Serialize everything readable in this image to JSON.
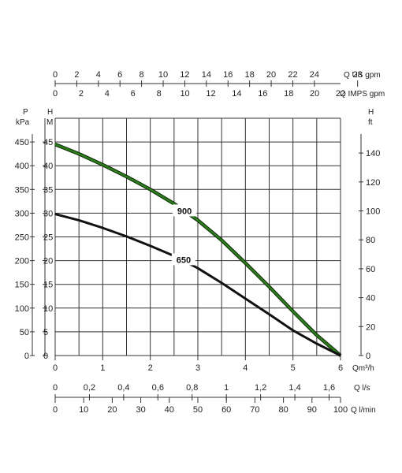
{
  "chart_data": {
    "type": "line",
    "title": "",
    "grid": true,
    "x": [
      0,
      0.5,
      1,
      1.5,
      2,
      2.5,
      3,
      3.5,
      4,
      4.5,
      5,
      5.5,
      6
    ],
    "xlim": [
      0,
      6
    ],
    "ylim": [
      0,
      45
    ],
    "series": [
      {
        "name": "900",
        "color": "#2e7d1e",
        "values": [
          44.5,
          42.5,
          40.2,
          37.7,
          35.0,
          32.0,
          28.5,
          24.3,
          19.5,
          14.5,
          9.3,
          4.3,
          0
        ]
      },
      {
        "name": "650",
        "color": "#111111",
        "values": [
          29.8,
          28.5,
          26.9,
          25.1,
          23.1,
          21.0,
          18.4,
          15.3,
          12.0,
          8.7,
          5.3,
          2.5,
          0
        ]
      }
    ],
    "axes": {
      "bottom_m3h": {
        "unit": "Qm³/h",
        "ticks": [
          "0",
          "1",
          "2",
          "3",
          "4",
          "5",
          "6"
        ]
      },
      "bottom_ls": {
        "unit": "Q l/s",
        "ticks": [
          "0",
          "0,2",
          "0,4",
          "0,6",
          "0,8",
          "1",
          "1,2",
          "1,4",
          "1,6"
        ]
      },
      "bottom_lmin": {
        "unit": "Q l/min",
        "ticks": [
          "0",
          "10",
          "20",
          "30",
          "40",
          "50",
          "60",
          "70",
          "80",
          "90",
          "100"
        ]
      },
      "top_usgpm": {
        "unit": "Q US gpm",
        "ticks": [
          "0",
          "2",
          "4",
          "6",
          "8",
          "10",
          "12",
          "14",
          "16",
          "18",
          "20",
          "22",
          "24",
          "28"
        ]
      },
      "top_impsgpm": {
        "unit": "Q IMPS gpm",
        "ticks": [
          "0",
          "2",
          "4",
          "6",
          "8",
          "10",
          "12",
          "14",
          "16",
          "18",
          "20",
          "22"
        ]
      },
      "left_kpa": {
        "title": "P",
        "unit": "kPa",
        "ticks": [
          "0",
          "50",
          "100",
          "150",
          "200",
          "250",
          "300",
          "350",
          "400",
          "450"
        ]
      },
      "left_m": {
        "title": "H",
        "unit": "M",
        "ticks": [
          "0",
          "5",
          "10",
          "15",
          "20",
          "25",
          "30",
          "35",
          "40",
          "45"
        ]
      },
      "right_ft": {
        "title": "H",
        "unit": "ft",
        "ticks": [
          "0",
          "20",
          "40",
          "60",
          "80",
          "100",
          "120",
          "140"
        ]
      }
    }
  }
}
